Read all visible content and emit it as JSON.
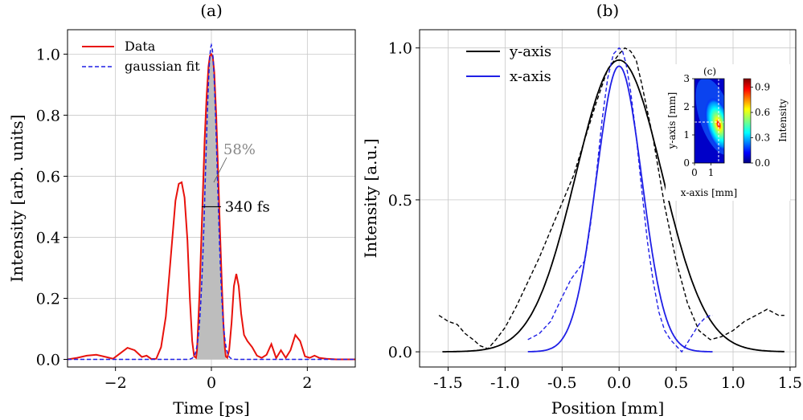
{
  "chart_data": [
    {
      "panel_label": "(a)",
      "type": "line",
      "xlabel": "Time [ps]",
      "ylabel": "Intensity [arb. units]",
      "xlim": [
        -3,
        3
      ],
      "ylim": [
        -0.025,
        1.08
      ],
      "xticks": [
        -2,
        0,
        2
      ],
      "xtick_labels": [
        "−2",
        "0",
        "2"
      ],
      "yticks": [
        0.0,
        0.2,
        0.4,
        0.6,
        0.8,
        1.0
      ],
      "ytick_labels": [
        "0.0",
        "0.2",
        "0.4",
        "0.6",
        "0.8",
        "1.0"
      ],
      "grid": true,
      "legend_position": "top-left",
      "series": [
        {
          "name": "Data",
          "color": "#e8120c",
          "style": "solid",
          "x": [
            -3.0,
            -2.8,
            -2.6,
            -2.4,
            -2.2,
            -2.05,
            -1.9,
            -1.75,
            -1.6,
            -1.45,
            -1.35,
            -1.25,
            -1.15,
            -1.05,
            -0.95,
            -0.85,
            -0.75,
            -0.68,
            -0.62,
            -0.56,
            -0.5,
            -0.45,
            -0.4,
            -0.36,
            -0.32,
            -0.3,
            -0.28,
            -0.25,
            -0.22,
            -0.18,
            -0.14,
            -0.1,
            -0.06,
            -0.03,
            0.0,
            0.03,
            0.06,
            0.1,
            0.14,
            0.18,
            0.22,
            0.25,
            0.28,
            0.3,
            0.33,
            0.37,
            0.42,
            0.47,
            0.52,
            0.57,
            0.62,
            0.68,
            0.75,
            0.85,
            0.95,
            1.05,
            1.15,
            1.25,
            1.35,
            1.45,
            1.55,
            1.65,
            1.75,
            1.85,
            1.95,
            2.05,
            2.15,
            2.25,
            2.4,
            2.6,
            2.8,
            3.0
          ],
          "y": [
            0.0,
            0.005,
            0.012,
            0.015,
            0.008,
            0.002,
            0.02,
            0.038,
            0.03,
            0.008,
            0.012,
            0.001,
            0.002,
            0.04,
            0.14,
            0.33,
            0.52,
            0.575,
            0.58,
            0.53,
            0.39,
            0.2,
            0.06,
            0.01,
            0.005,
            0.03,
            0.1,
            0.21,
            0.35,
            0.54,
            0.72,
            0.86,
            0.96,
            0.995,
            1.0,
            0.99,
            0.94,
            0.8,
            0.61,
            0.42,
            0.24,
            0.12,
            0.04,
            0.01,
            0.005,
            0.03,
            0.12,
            0.24,
            0.28,
            0.24,
            0.15,
            0.08,
            0.06,
            0.04,
            0.012,
            0.005,
            0.015,
            0.05,
            0.004,
            0.03,
            0.005,
            0.03,
            0.08,
            0.06,
            0.01,
            0.005,
            0.012,
            0.005,
            0.002,
            0.0,
            0.0,
            0.0
          ]
        },
        {
          "name": "gaussian fit",
          "color": "#1f1fe6",
          "style": "dashed",
          "gaussian": {
            "amplitude": 1.03,
            "center": 0.0,
            "sigma": 0.12
          }
        }
      ],
      "annotations": [
        {
          "text": "58%",
          "x": 0.25,
          "y": 0.69,
          "color": "#888888"
        },
        {
          "text": "340 fs",
          "x": 0.28,
          "y": 0.5
        }
      ]
    },
    {
      "panel_label": "(b)",
      "type": "line",
      "xlabel": "Position [mm]",
      "ylabel": "Intensity [a.u.]",
      "xlim": [
        -1.75,
        1.55
      ],
      "ylim": [
        -0.05,
        1.06
      ],
      "xticks": [
        -1.5,
        -1.0,
        -0.5,
        0.0,
        0.5,
        1.0,
        1.5
      ],
      "xtick_labels": [
        "-1.5",
        "-1.0",
        "-0.5",
        "0.0",
        "0.5",
        "1.0",
        "1.5"
      ],
      "yticks": [
        0.0,
        0.5,
        1.0
      ],
      "ytick_labels": [
        "0.0",
        "0.5",
        "1.0"
      ],
      "grid": true,
      "legend_position": "top-left",
      "series": [
        {
          "name": "y-axis",
          "color": "#000000",
          "style": "solid",
          "gaussian": {
            "amplitude": 0.96,
            "center": 0.0,
            "sigma": 0.38,
            "range": [
              -1.55,
              1.45
            ]
          }
        },
        {
          "name": "x-axis",
          "color": "#1f1fe6",
          "style": "solid",
          "gaussian": {
            "amplitude": 0.94,
            "center": 0.0,
            "sigma": 0.2,
            "range": [
              -0.8,
              0.82
            ]
          }
        },
        {
          "name": "",
          "color": "#000000",
          "style": "dashed",
          "x": [
            -1.58,
            -1.5,
            -1.42,
            -1.35,
            -1.28,
            -1.22,
            -1.15,
            -1.08,
            -1.0,
            -0.9,
            -0.8,
            -0.7,
            -0.6,
            -0.5,
            -0.4,
            -0.3,
            -0.2,
            -0.1,
            0.0,
            0.05,
            0.1,
            0.15,
            0.2,
            0.3,
            0.4,
            0.5,
            0.6,
            0.7,
            0.8,
            0.9,
            1.0,
            1.1,
            1.2,
            1.3,
            1.35,
            1.4,
            1.45
          ],
          "y": [
            0.12,
            0.1,
            0.09,
            0.06,
            0.04,
            0.02,
            0.01,
            0.04,
            0.08,
            0.15,
            0.23,
            0.31,
            0.4,
            0.49,
            0.58,
            0.7,
            0.82,
            0.93,
            0.98,
            1.0,
            0.99,
            0.96,
            0.88,
            0.7,
            0.48,
            0.3,
            0.16,
            0.07,
            0.04,
            0.05,
            0.07,
            0.1,
            0.12,
            0.14,
            0.13,
            0.12,
            0.12
          ]
        },
        {
          "name": "",
          "color": "#1f1fe6",
          "style": "dashed",
          "x": [
            -0.8,
            -0.7,
            -0.6,
            -0.5,
            -0.42,
            -0.36,
            -0.3,
            -0.25,
            -0.2,
            -0.15,
            -0.1,
            -0.05,
            0.0,
            0.03,
            0.06,
            0.1,
            0.15,
            0.2,
            0.25,
            0.3,
            0.35,
            0.4,
            0.45,
            0.5,
            0.55,
            0.6,
            0.65,
            0.7,
            0.75,
            0.8,
            0.82
          ],
          "y": [
            0.04,
            0.06,
            0.1,
            0.18,
            0.24,
            0.27,
            0.3,
            0.42,
            0.58,
            0.76,
            0.9,
            0.98,
            1.0,
            0.99,
            0.95,
            0.86,
            0.71,
            0.53,
            0.36,
            0.23,
            0.13,
            0.07,
            0.04,
            0.02,
            0.0,
            0.03,
            0.06,
            0.09,
            0.11,
            0.12,
            0.12
          ]
        }
      ],
      "inset": {
        "panel_label": "(c)",
        "type": "heatmap",
        "xlabel": "x-axis [mm]",
        "ylabel": "y-axis [mm]",
        "xlim": [
          0,
          1.8
        ],
        "ylim": [
          0,
          3
        ],
        "xticks": [
          0,
          1
        ],
        "xtick_labels": [
          "0",
          "1"
        ],
        "yticks": [
          0,
          1,
          2,
          3
        ],
        "ytick_labels": [
          "0",
          "1",
          "2",
          "3"
        ],
        "colorbar": {
          "label": "Intensity",
          "ticks": [
            "0.0",
            "0.3",
            "0.6",
            "0.9"
          ],
          "range": [
            0,
            1
          ],
          "colormap": "jet"
        },
        "peak": {
          "x": 0.82,
          "y": 1.35
        },
        "crosshair": {
          "x": 0.82,
          "y": 1.45
        }
      }
    }
  ],
  "figure": {
    "panel_a_label": "(a)",
    "panel_b_label": "(b)"
  }
}
